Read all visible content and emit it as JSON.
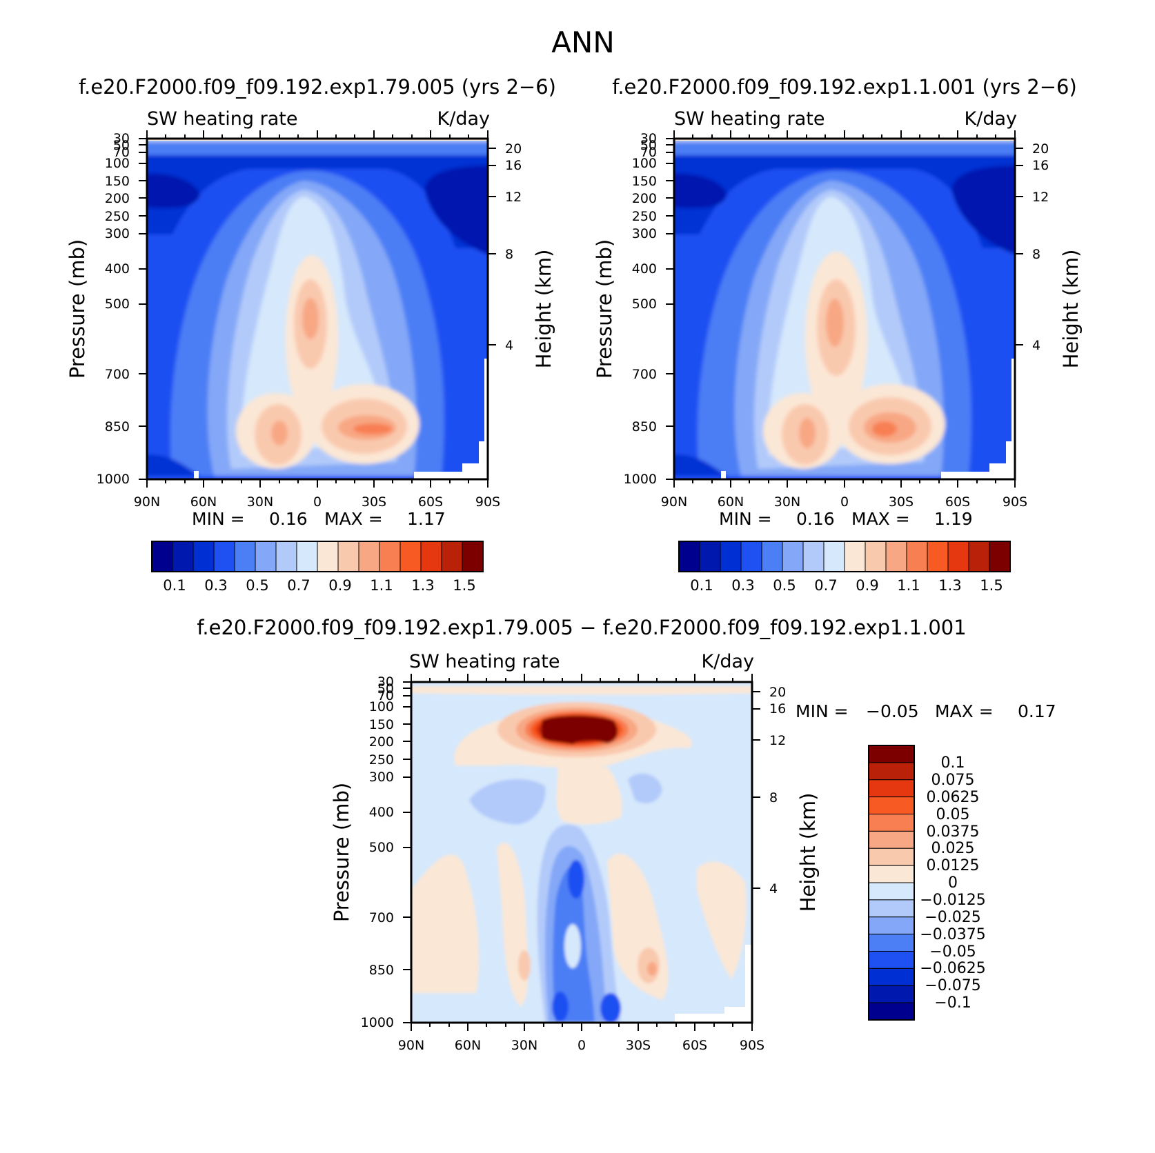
{
  "figure": {
    "title": "ANN"
  },
  "chart_data": [
    {
      "type": "heatmap",
      "title": "f.e20.F2000.f09_f09.192.exp1.79.005 (yrs 2−6)",
      "left_label": "SW heating rate",
      "right_label": "K/day",
      "ylabel": "Pressure (mb)",
      "ylabel_right": "Height (km)",
      "x_ticks": [
        "90N",
        "60N",
        "30N",
        "0",
        "30S",
        "60S",
        "90S"
      ],
      "x_range": [
        90,
        -90
      ],
      "y_ticks": [
        "30",
        "50",
        "70",
        "100",
        "150",
        "200",
        "250",
        "300",
        "400",
        "500",
        "700",
        "850",
        "1000"
      ],
      "y_range_mb": [
        30,
        1000
      ],
      "y_scale": "log",
      "height_ticks": [
        "20",
        "16",
        "12",
        "8",
        "4"
      ],
      "stats": {
        "min_label": "MIN =",
        "min": "0.16",
        "max_label": "MAX =",
        "max": "1.17"
      },
      "colorbar": {
        "orientation": "horizontal",
        "levels": [
          "0.1",
          "0.2",
          "0.3",
          "0.4",
          "0.5",
          "0.6",
          "0.7",
          "0.8",
          "0.9",
          "1",
          "1.1",
          "1.2",
          "1.3",
          "1.4",
          "1.5"
        ],
        "labels": [
          "0.1",
          "0.3",
          "0.5",
          "0.7",
          "0.9",
          "1.1",
          "1.3",
          "1.5"
        ],
        "colors": [
          "#00008e",
          "#0018ae",
          "#0030d4",
          "#1e50f2",
          "#4c7ef5",
          "#84a8f7",
          "#b2cafa",
          "#d6e8fb",
          "#fbe7d5",
          "#f9c9ae",
          "#f8a784",
          "#f87f52",
          "#f75a22",
          "#e63810",
          "#b92208",
          "#7d0000"
        ]
      },
      "features": [
        {
          "lat": -5,
          "p": 520,
          "value": 1.17
        },
        {
          "lat": -25,
          "p": 850,
          "value": 1.1
        },
        {
          "lat": 23,
          "p": 850,
          "value": 1.0
        },
        {
          "lat": 60,
          "p": 200,
          "value": 0.16
        }
      ]
    },
    {
      "type": "heatmap",
      "title": "f.e20.F2000.f09_f09.192.exp1.1.001 (yrs 2−6)",
      "left_label": "SW heating rate",
      "right_label": "K/day",
      "ylabel": "Pressure (mb)",
      "ylabel_right": "Height (km)",
      "x_ticks": [
        "90N",
        "60N",
        "30N",
        "0",
        "30S",
        "60S",
        "90S"
      ],
      "x_range": [
        90,
        -90
      ],
      "y_ticks": [
        "30",
        "50",
        "70",
        "100",
        "150",
        "200",
        "250",
        "300",
        "400",
        "500",
        "700",
        "850",
        "1000"
      ],
      "y_range_mb": [
        30,
        1000
      ],
      "y_scale": "log",
      "height_ticks": [
        "20",
        "16",
        "12",
        "8",
        "4"
      ],
      "stats": {
        "min_label": "MIN =",
        "min": "0.16",
        "max_label": "MAX =",
        "max": "1.19"
      },
      "colorbar": {
        "orientation": "horizontal",
        "levels": [
          "0.1",
          "0.2",
          "0.3",
          "0.4",
          "0.5",
          "0.6",
          "0.7",
          "0.8",
          "0.9",
          "1",
          "1.1",
          "1.2",
          "1.3",
          "1.4",
          "1.5"
        ],
        "labels": [
          "0.1",
          "0.3",
          "0.5",
          "0.7",
          "0.9",
          "1.1",
          "1.3",
          "1.5"
        ],
        "colors": [
          "#00008e",
          "#0018ae",
          "#0030d4",
          "#1e50f2",
          "#4c7ef5",
          "#84a8f7",
          "#b2cafa",
          "#d6e8fb",
          "#fbe7d5",
          "#f9c9ae",
          "#f8a784",
          "#f87f52",
          "#f75a22",
          "#e63810",
          "#b92208",
          "#7d0000"
        ]
      },
      "features": [
        {
          "lat": 5,
          "p": 520,
          "value": 1.1
        },
        {
          "lat": -20,
          "p": 850,
          "value": 1.19
        },
        {
          "lat": 20,
          "p": 850,
          "value": 1.05
        },
        {
          "lat": 60,
          "p": 200,
          "value": 0.16
        }
      ]
    },
    {
      "type": "heatmap",
      "title": "f.e20.F2000.f09_f09.192.exp1.79.005 − f.e20.F2000.f09_f09.192.exp1.1.001",
      "left_label": "SW heating rate",
      "right_label": "K/day",
      "ylabel": "Pressure (mb)",
      "ylabel_right": "Height (km)",
      "x_ticks": [
        "90N",
        "60N",
        "30N",
        "0",
        "30S",
        "60S",
        "90S"
      ],
      "x_range": [
        90,
        -90
      ],
      "y_ticks": [
        "30",
        "50",
        "70",
        "100",
        "150",
        "200",
        "250",
        "300",
        "400",
        "500",
        "700",
        "850",
        "1000"
      ],
      "y_range_mb": [
        30,
        1000
      ],
      "y_scale": "log",
      "height_ticks": [
        "20",
        "16",
        "12",
        "8",
        "4"
      ],
      "stats": {
        "min_label": "MIN =",
        "min": "−0.05",
        "max_label": "MAX =",
        "max": "0.17"
      },
      "colorbar": {
        "orientation": "vertical",
        "labels": [
          "0.1",
          "0.075",
          "0.0625",
          "0.05",
          "0.0375",
          "0.025",
          "0.0125",
          "0",
          "−0.0125",
          "−0.025",
          "−0.0375",
          "−0.05",
          "−0.0625",
          "−0.075",
          "−0.1"
        ],
        "colors": [
          "#7d0000",
          "#b92208",
          "#e63810",
          "#f75a22",
          "#f87f52",
          "#f8a784",
          "#f9c9ae",
          "#fbe7d5",
          "#d6e8fb",
          "#b2cafa",
          "#84a8f7",
          "#4c7ef5",
          "#1e50f2",
          "#0030d4",
          "#0018ae",
          "#00008e"
        ]
      },
      "features": [
        {
          "lat": 0,
          "p": 160,
          "value": 0.17
        },
        {
          "lat": 5,
          "p": 600,
          "value": -0.05
        },
        {
          "lat": 35,
          "p": 850,
          "value": 0.03
        },
        {
          "lat": -30,
          "p": 850,
          "value": 0.04
        }
      ]
    }
  ]
}
